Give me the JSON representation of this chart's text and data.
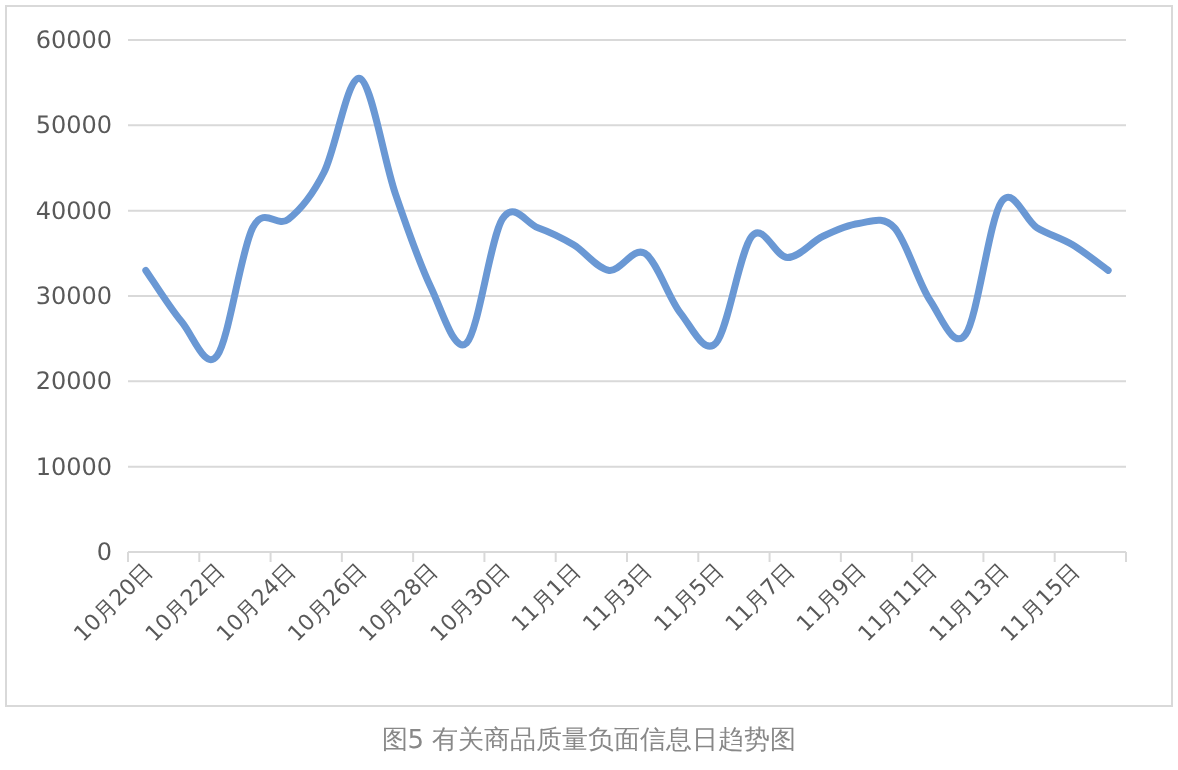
{
  "chart_data": {
    "type": "line",
    "categories": [
      "10月20日",
      null,
      "10月22日",
      null,
      "10月24日",
      null,
      "10月26日",
      null,
      "10月28日",
      null,
      "10月30日",
      null,
      "11月1日",
      null,
      "11月3日",
      null,
      "11月5日",
      null,
      "11月7日",
      null,
      "11月9日",
      null,
      "11月11日",
      null,
      "11月13日",
      null,
      "11月15日",
      null
    ],
    "series": [
      {
        "color": "#6a98d4",
        "values": [
          33000,
          27000,
          23000,
          38000,
          39000,
          44500,
          55500,
          42000,
          31000,
          24500,
          39000,
          38000,
          36000,
          33000,
          35000,
          28000,
          24500,
          37000,
          34500,
          37000,
          38500,
          38000,
          29500,
          25500,
          41000,
          38000,
          36000,
          33000
        ]
      }
    ],
    "ylim": [
      0,
      60000
    ],
    "yticks": [
      0,
      10000,
      20000,
      30000,
      40000,
      50000,
      60000
    ],
    "grid": "y",
    "marker": "none",
    "line_style": "solid",
    "annotations": [
      "图5 有关商品质量负面信息日趋势图"
    ]
  }
}
